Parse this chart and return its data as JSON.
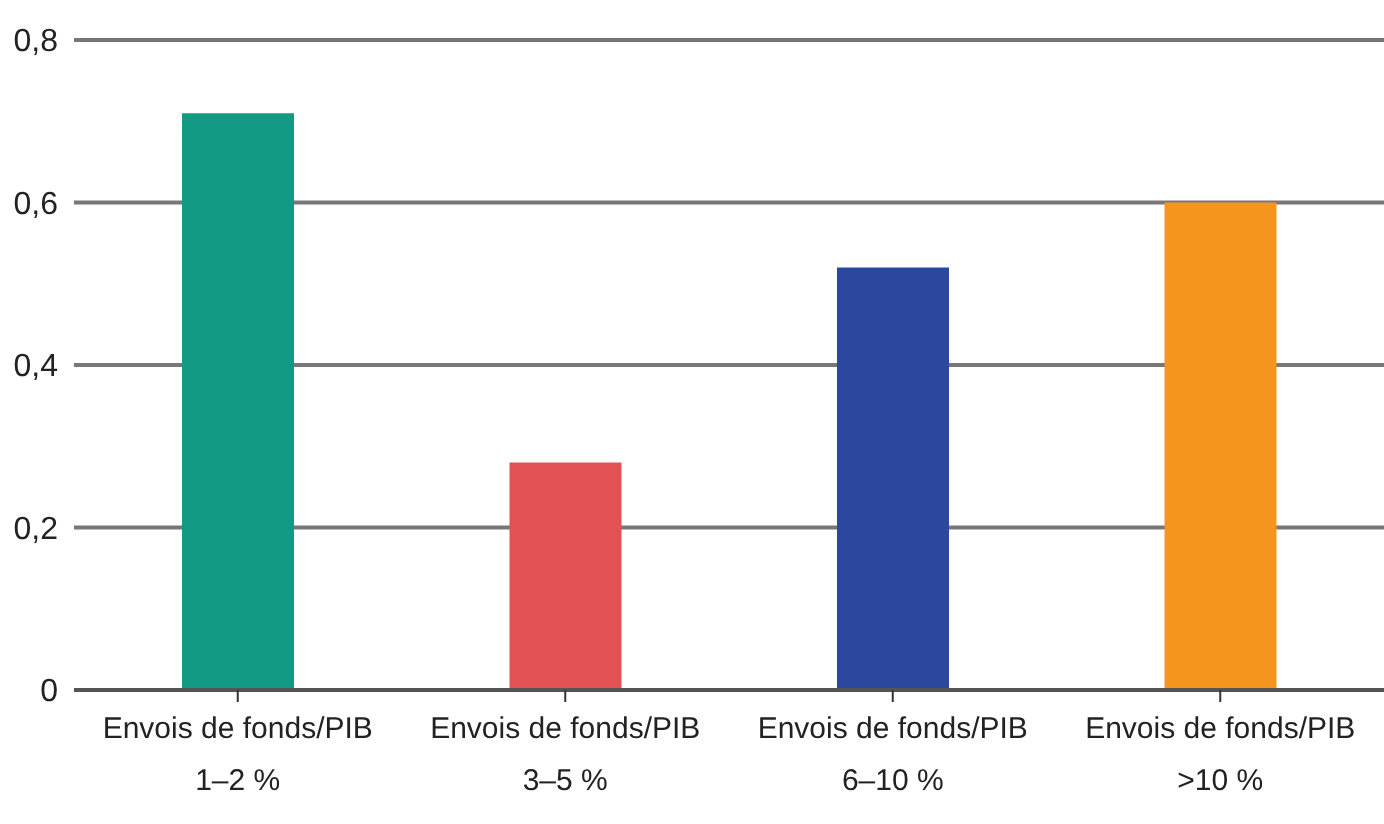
{
  "chart_data": {
    "type": "bar",
    "categories": [
      "Envois de fonds/PIB\n1–2 %",
      "Envois de fonds/PIB\n3–5 %",
      "Envois de fonds/PIB\n6–10 %",
      "Envois de fonds/PIB\n>10 %"
    ],
    "values": [
      0.71,
      0.28,
      0.52,
      0.6
    ],
    "colors": [
      "#139a85",
      "#e35253",
      "#2c489e",
      "#f59520"
    ],
    "ylim": [
      0,
      0.8
    ],
    "yticks": [
      {
        "value": 0,
        "label": "0"
      },
      {
        "value": 0.2,
        "label": "0,2"
      },
      {
        "value": 0.4,
        "label": "0,4"
      },
      {
        "value": 0.6,
        "label": "0,6"
      },
      {
        "value": 0.8,
        "label": "0,8"
      }
    ],
    "grid": "y"
  }
}
